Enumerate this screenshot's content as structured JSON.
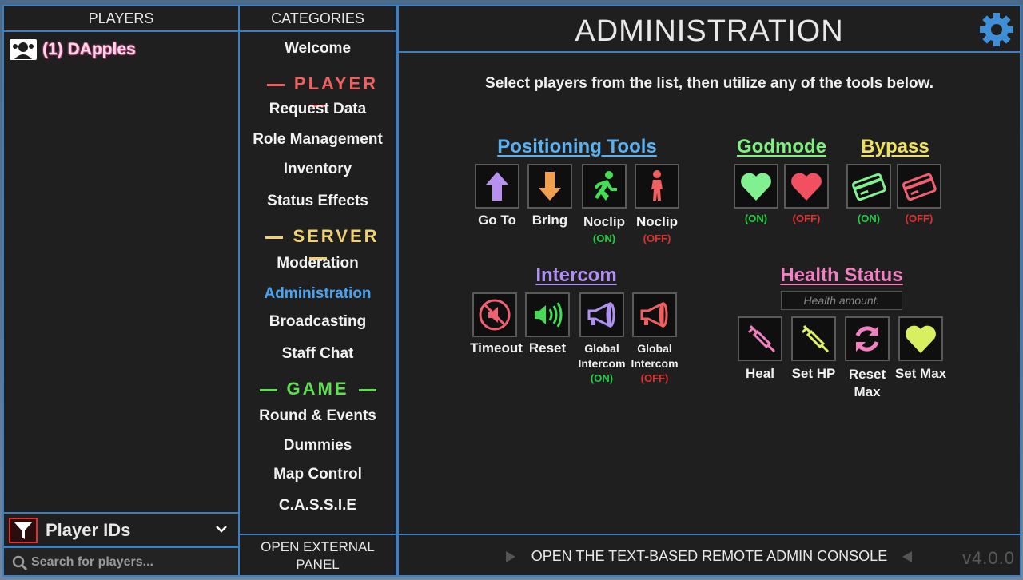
{
  "players": {
    "header": "PLAYERS",
    "items": [
      {
        "label": "(1) DApples"
      }
    ],
    "filter_label": "Player IDs",
    "search_placeholder": "Search for players..."
  },
  "categories": {
    "header": "CATEGORIES",
    "welcome": "Welcome",
    "player_section": "PLAYER",
    "player_items": [
      "Request Data",
      "Role Management",
      "Inventory",
      "Status Effects"
    ],
    "server_section": "SERVER",
    "server_items": [
      "Moderation",
      "Administration",
      "Broadcasting",
      "Staff Chat"
    ],
    "game_section": "GAME",
    "game_items": [
      "Round & Events",
      "Dummies",
      "Map Control",
      "C.A.S.S.I.E"
    ],
    "external_button": [
      "OPEN EXTERNAL",
      "PANEL"
    ]
  },
  "main": {
    "title": "ADMINISTRATION",
    "instruction": "Select players from the list, then utilize any of the tools below.",
    "positioning": {
      "title": "Positioning Tools",
      "tools": [
        {
          "label": "Go To"
        },
        {
          "label": "Bring"
        },
        {
          "label": "Noclip",
          "state": "(ON)"
        },
        {
          "label": "Noclip",
          "state": "(OFF)"
        }
      ]
    },
    "godmode": {
      "title": "Godmode",
      "on": "(ON)",
      "off": "(OFF)"
    },
    "bypass": {
      "title": "Bypass",
      "on": "(ON)",
      "off": "(OFF)"
    },
    "intercom": {
      "title": "Intercom",
      "tools": [
        {
          "label": "Timeout"
        },
        {
          "label": "Reset"
        },
        {
          "label": "Global",
          "label2": "Intercom",
          "state": "(ON)"
        },
        {
          "label": "Global",
          "label2": "Intercom",
          "state": "(OFF)"
        }
      ]
    },
    "health": {
      "title": "Health Status",
      "placeholder": "Health amount.",
      "tools": [
        {
          "label": "Heal"
        },
        {
          "label": "Set HP"
        },
        {
          "label": "Reset",
          "label2": "Max"
        },
        {
          "label": "Set Max"
        }
      ]
    },
    "console_label": "OPEN THE TEXT-BASED REMOTE ADMIN CONSOLE",
    "version": "v4.0.0"
  },
  "colors": {
    "accent_border": "#3f7fc0",
    "player_section": "#f06060",
    "server_section": "#f0d070",
    "game_section": "#60e050",
    "positioning": "#5ab0f0",
    "godmode": "#80f080",
    "bypass": "#f0e060",
    "intercom": "#b090f0",
    "health": "#f080c0",
    "on": "#22cc44",
    "off": "#e03030"
  }
}
